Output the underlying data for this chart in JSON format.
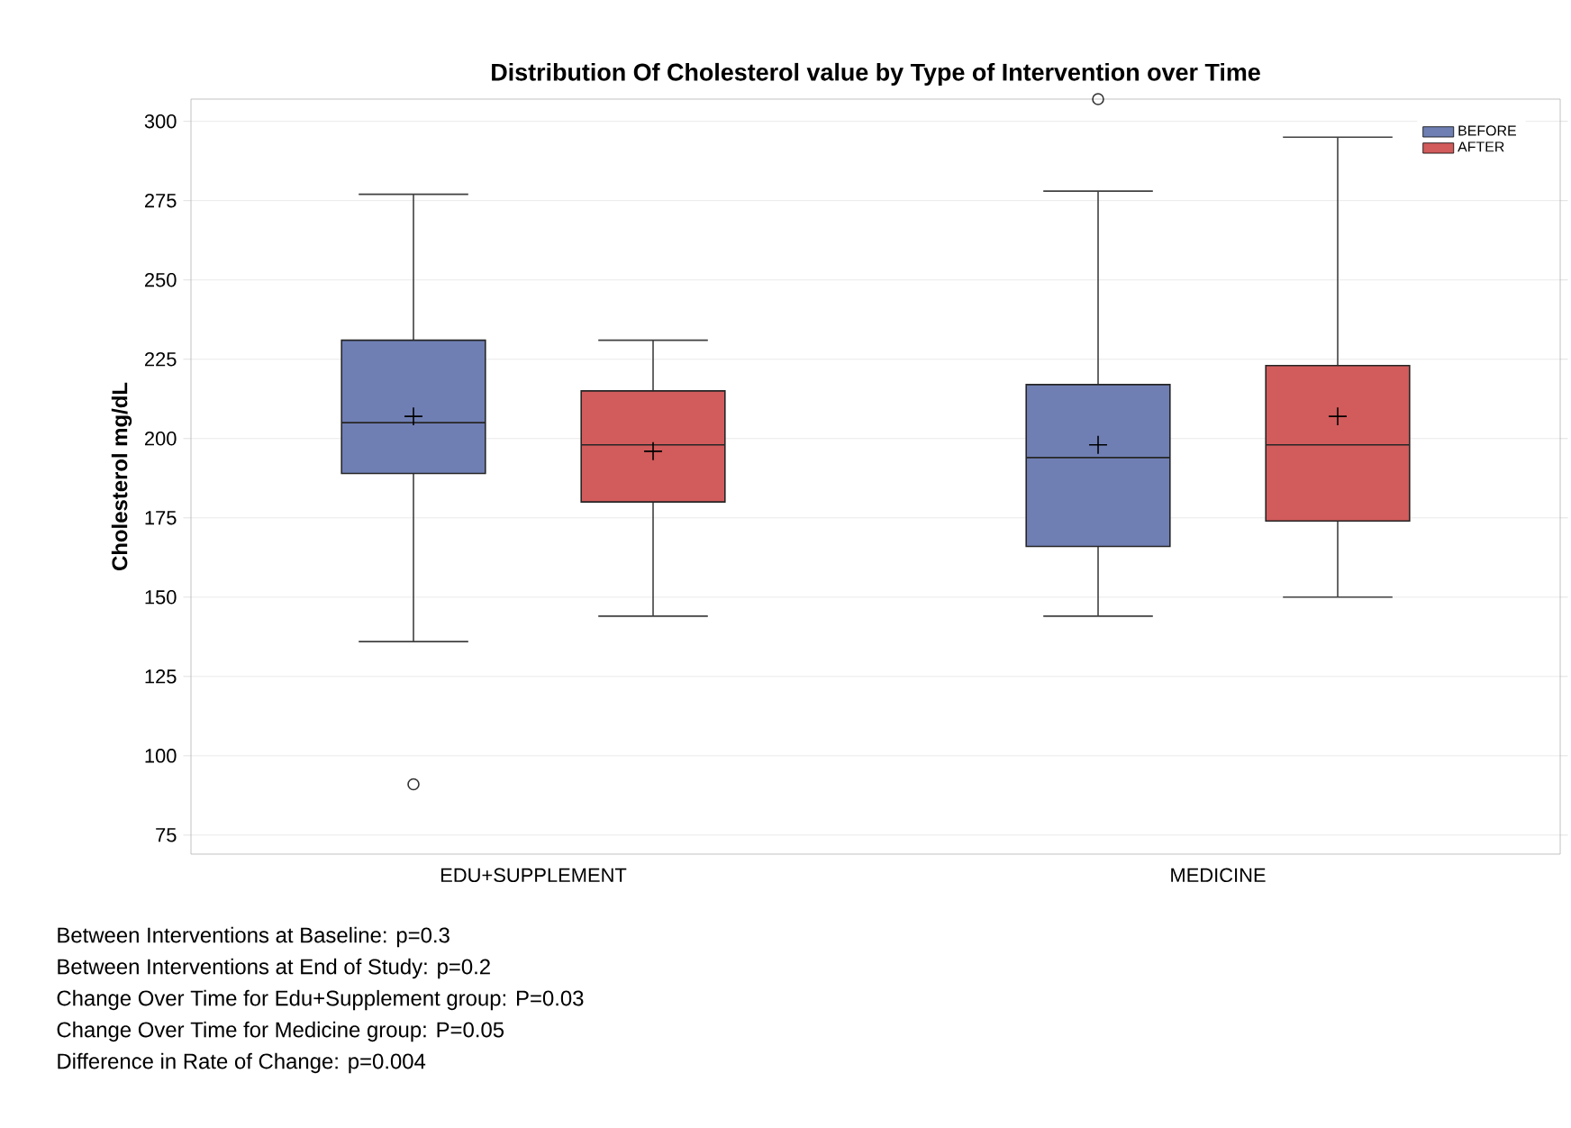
{
  "chart_data": {
    "type": "box",
    "title": "Distribution Of Cholesterol value by Type of Intervention over Time",
    "ylabel": "Cholesterol mg/dL",
    "categories": [
      "EDU+SUPPLEMENT",
      "MEDICINE"
    ],
    "series": [
      {
        "name": "BEFORE",
        "color": "#6f7fb4",
        "boxes": [
          {
            "low": 136,
            "q1": 189,
            "median": 205,
            "q3": 231,
            "high": 277,
            "mean": 207,
            "outliers": [
              91
            ]
          },
          {
            "low": 144,
            "q1": 166,
            "median": 194,
            "q3": 217,
            "high": 278,
            "mean": 198,
            "outliers": [
              307
            ]
          }
        ]
      },
      {
        "name": "AFTER",
        "color": "#d25b5b",
        "boxes": [
          {
            "low": 144,
            "q1": 180,
            "median": 198,
            "q3": 215,
            "high": 231,
            "mean": 196
          },
          {
            "low": 150,
            "q1": 174,
            "median": 198,
            "q3": 223,
            "high": 295,
            "mean": 207
          }
        ]
      }
    ],
    "ylim": [
      69,
      307
    ],
    "yticks": [
      75,
      100,
      125,
      150,
      175,
      200,
      225,
      250,
      275,
      300
    ],
    "grid": "y",
    "legend": "top right",
    "annotations": [
      "Between Interventions at Baseline: p=0.3",
      "Between Interventions at End of Study: p=0.2",
      "Change Over Time for Edu+Supplement group: P=0.03",
      "Change Over Time for Medicine group: P=0.05",
      "Difference in Rate of Change: p=0.004"
    ]
  }
}
